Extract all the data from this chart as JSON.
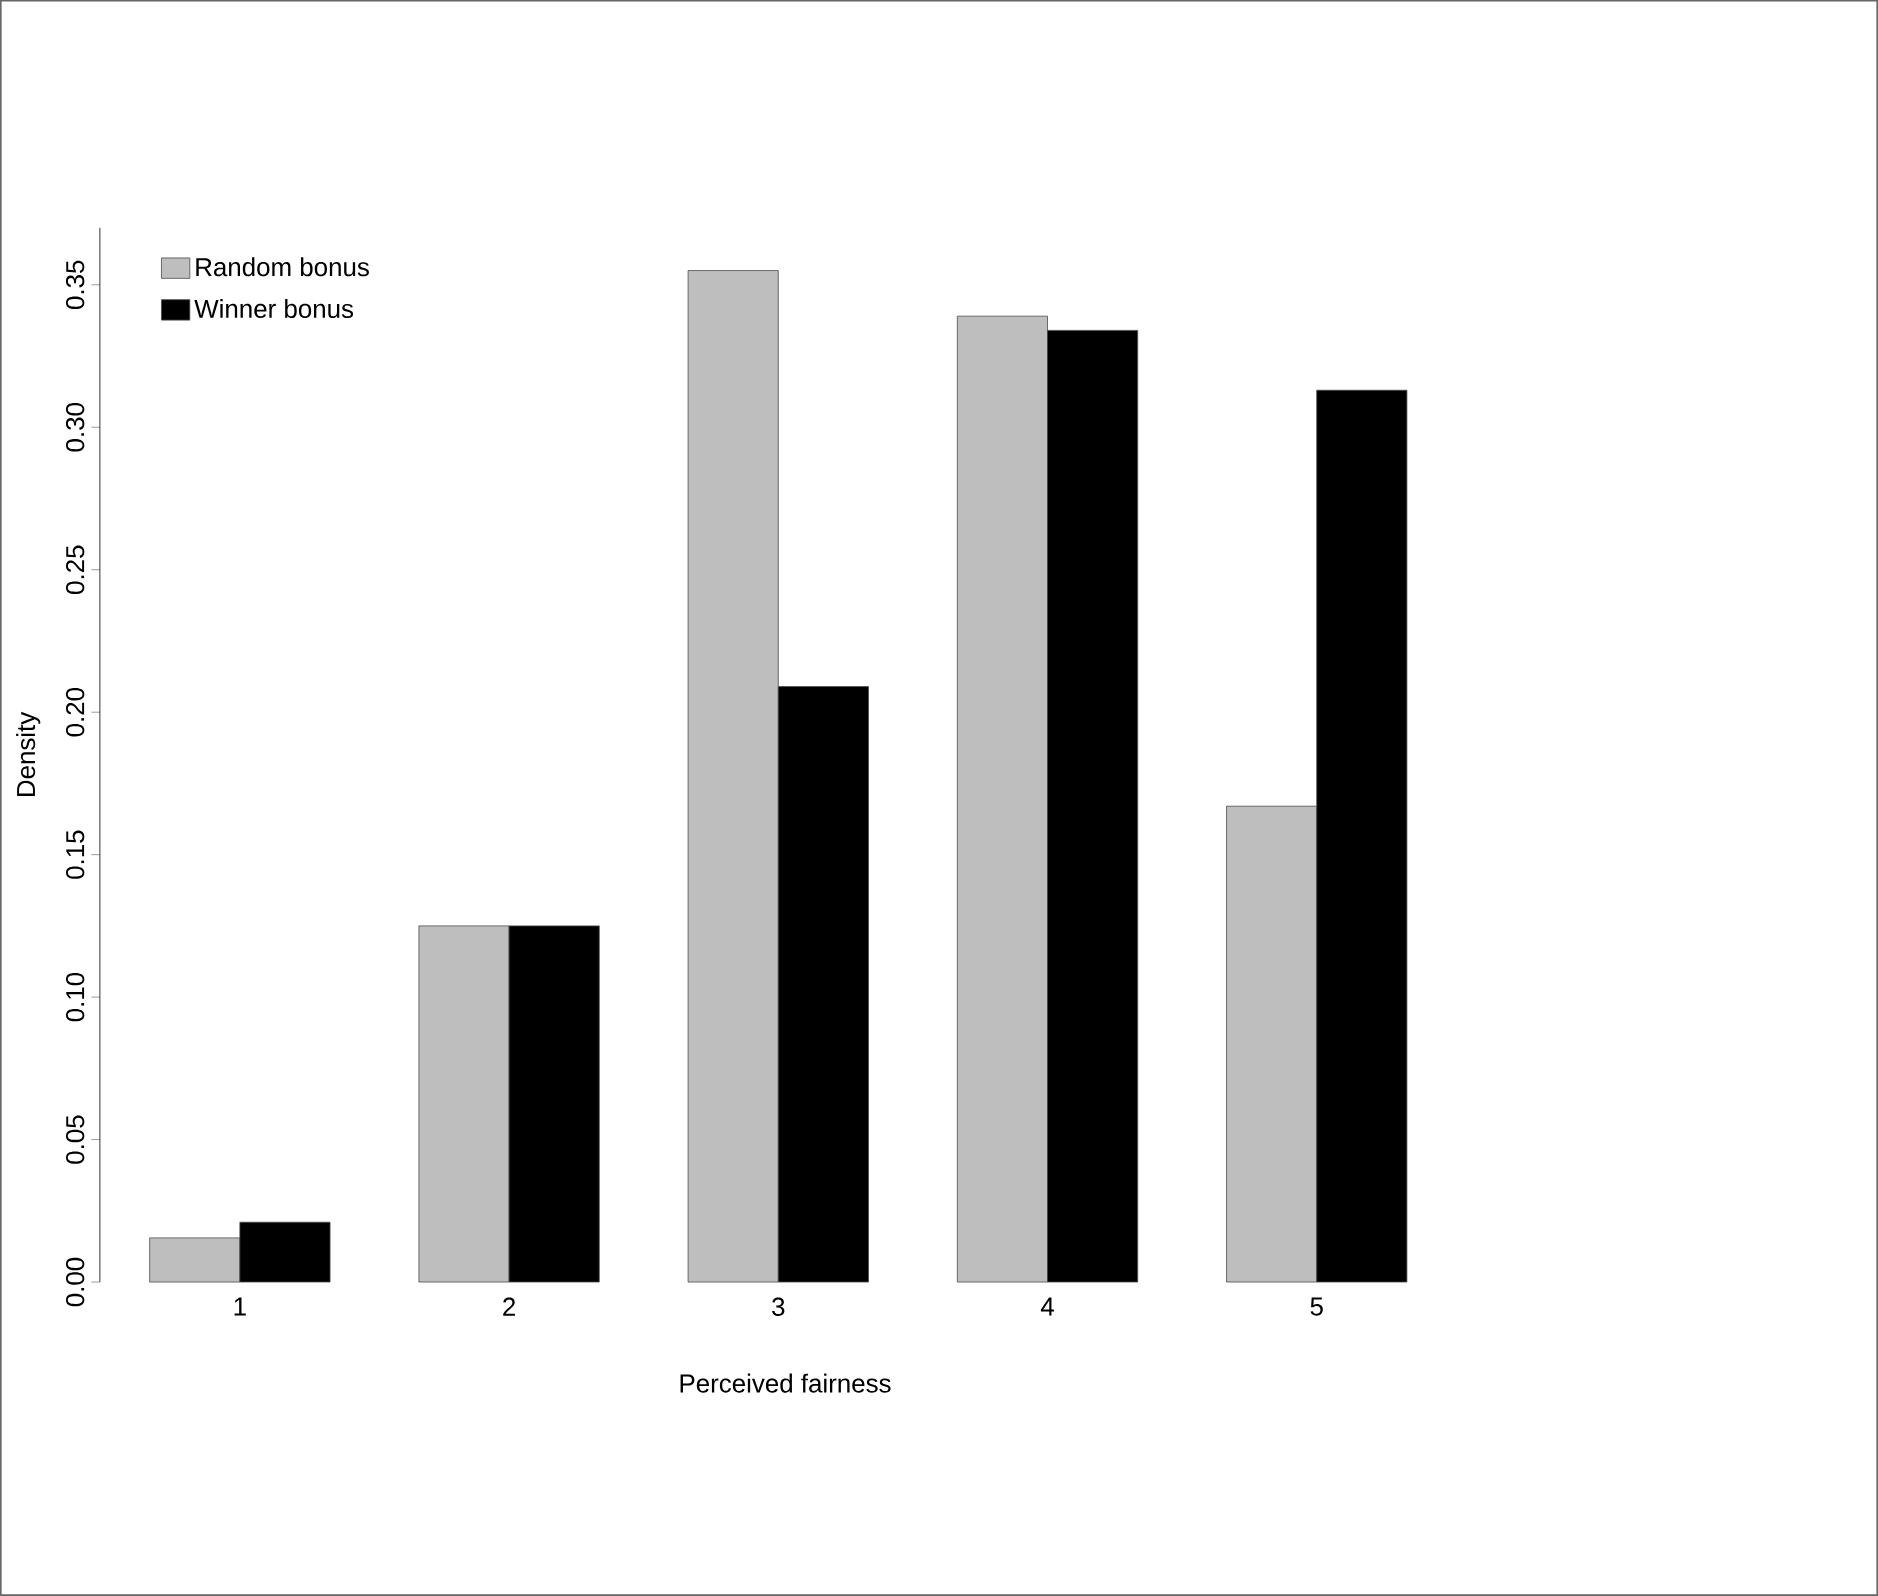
{
  "chart_data": {
    "type": "bar",
    "xlabel": "Perceived fairness",
    "ylabel": "Density",
    "categories": [
      "1",
      "2",
      "3",
      "4",
      "5"
    ],
    "series": [
      {
        "name": "Random bonus",
        "color": "#bebebe",
        "values": [
          0.0155,
          0.125,
          0.355,
          0.339,
          0.167
        ]
      },
      {
        "name": "Winner bonus",
        "color": "#000000",
        "values": [
          0.021,
          0.125,
          0.209,
          0.334,
          0.313
        ]
      }
    ],
    "ylim": [
      0,
      0.37
    ],
    "yticks": [
      {
        "value": 0,
        "label": "0.00"
      },
      0.05,
      {
        "value": 0.1,
        "label": "0.10"
      },
      0.15,
      {
        "value": 0.2,
        "label": "0.20"
      },
      0.25,
      {
        "value": 0.3,
        "label": "0.30"
      },
      0.35
    ],
    "grid": false,
    "legend": "top left"
  }
}
